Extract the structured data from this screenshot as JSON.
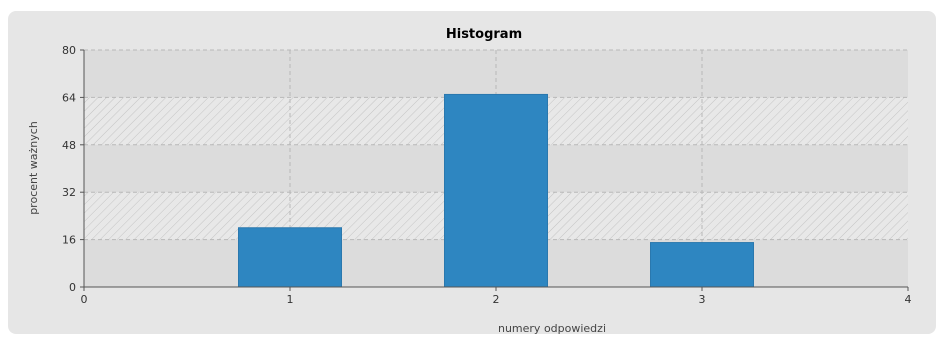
{
  "chart_data": {
    "type": "bar",
    "title": "Histogram",
    "xlabel": "numery odpowiedzi",
    "ylabel": "procent ważnych",
    "xlim": [
      0,
      4
    ],
    "ylim": [
      0,
      80
    ],
    "xticks": [
      "0",
      "1",
      "2",
      "3",
      "4"
    ],
    "yticks": [
      "0",
      "16",
      "32",
      "48",
      "64",
      "80"
    ],
    "categories": [
      1,
      2,
      3
    ],
    "values": [
      20,
      65,
      15
    ],
    "grid": true,
    "colors": {
      "bar": "#2e86c1",
      "plot_bg": "#dcdcdc",
      "band": "#e8e8e8"
    }
  }
}
